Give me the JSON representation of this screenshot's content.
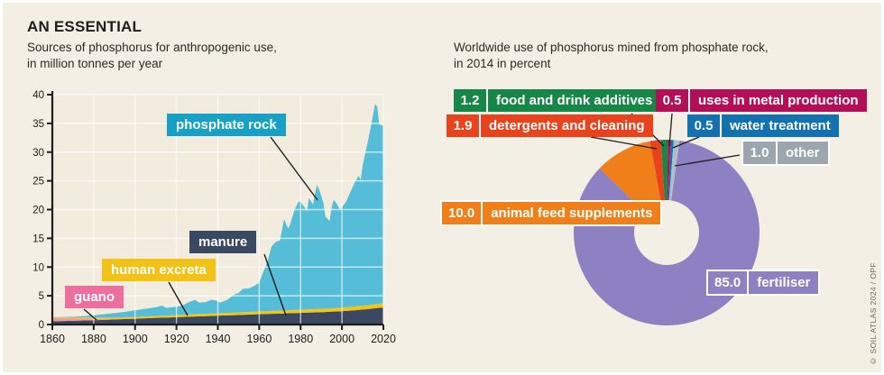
{
  "header": {
    "title": "AN ESSENTIAL",
    "subtitle_line1": "Sources of phosphorus for anthropogenic use,",
    "subtitle_line2": "in million tonnes per year"
  },
  "right_header": {
    "line1": "Worldwide use of phosphorus mined from phosphate rock,",
    "line2": "in 2014 in percent"
  },
  "credit": "© SOIL ATLAS 2024 / OPF",
  "colors": {
    "background": "#f4efe5",
    "plot_background": "#f2ecdf",
    "gridline": "#ffffff",
    "axis": "#1d1d1b",
    "text": "#1d1d1b",
    "leader_line": "#1d1d1b"
  },
  "chart_data": [
    {
      "type": "area",
      "stacked": true,
      "title": "Sources of phosphorus for anthropogenic use, in million tonnes per year",
      "xlabel": "",
      "ylabel": "million tonnes per year",
      "ylim": [
        0,
        40
      ],
      "yticks": [
        0,
        5,
        10,
        15,
        20,
        25,
        30,
        35,
        40
      ],
      "xticks": [
        1860,
        1880,
        1900,
        1920,
        1940,
        1960,
        1980,
        2000,
        2020
      ],
      "grid": true,
      "x": [
        1860,
        1865,
        1870,
        1875,
        1880,
        1885,
        1890,
        1895,
        1900,
        1905,
        1910,
        1913,
        1915,
        1920,
        1923,
        1926,
        1929,
        1931,
        1934,
        1937,
        1939,
        1941,
        1944,
        1946,
        1948,
        1950,
        1952,
        1955,
        1958,
        1960,
        1962,
        1964,
        1966,
        1968,
        1970,
        1972,
        1974,
        1975,
        1977,
        1979,
        1980,
        1982,
        1983,
        1984,
        1986,
        1987,
        1988,
        1989,
        1991,
        1992,
        1994,
        1995,
        1996,
        1998,
        1999,
        2000,
        2002,
        2004,
        2006,
        2008,
        2009,
        2010,
        2012,
        2014,
        2016,
        2017,
        2018,
        2020
      ],
      "series": [
        {
          "name": "manure",
          "color": "#3a4861",
          "label_color": "#3a4861",
          "values": [
            0.55,
            0.6,
            0.65,
            0.7,
            0.75,
            0.8,
            0.88,
            0.95,
            1.0,
            1.08,
            1.15,
            1.18,
            1.2,
            1.28,
            1.32,
            1.36,
            1.4,
            1.42,
            1.46,
            1.5,
            1.53,
            1.55,
            1.58,
            1.6,
            1.63,
            1.65,
            1.68,
            1.72,
            1.76,
            1.8,
            1.82,
            1.84,
            1.86,
            1.88,
            1.9,
            1.93,
            1.96,
            1.97,
            1.99,
            2.01,
            2.02,
            2.05,
            2.06,
            2.07,
            2.1,
            2.11,
            2.12,
            2.13,
            2.16,
            2.18,
            2.21,
            2.23,
            2.25,
            2.28,
            2.3,
            2.32,
            2.37,
            2.42,
            2.48,
            2.54,
            2.57,
            2.6,
            2.67,
            2.74,
            2.82,
            2.86,
            2.9,
            2.95
          ]
        },
        {
          "name": "guano",
          "color": "#e99baf",
          "label_color": "#ed6f9d",
          "values": [
            0.5,
            0.48,
            0.44,
            0.36,
            0.27,
            0.18,
            0.1,
            0.05,
            0.03,
            0.01,
            0,
            0,
            0,
            0,
            0,
            0,
            0,
            0,
            0,
            0,
            0,
            0,
            0,
            0,
            0,
            0,
            0,
            0,
            0,
            0,
            0,
            0,
            0,
            0,
            0,
            0,
            0,
            0,
            0,
            0,
            0,
            0,
            0,
            0,
            0,
            0,
            0,
            0,
            0,
            0,
            0,
            0,
            0,
            0,
            0,
            0,
            0,
            0,
            0,
            0,
            0,
            0,
            0,
            0,
            0,
            0,
            0,
            0
          ]
        },
        {
          "name": "human excreta",
          "color": "#f5c413",
          "label_color": "#f3c216",
          "values": [
            0.15,
            0.16,
            0.17,
            0.19,
            0.21,
            0.23,
            0.26,
            0.28,
            0.3,
            0.32,
            0.34,
            0.35,
            0.35,
            0.37,
            0.38,
            0.39,
            0.4,
            0.4,
            0.41,
            0.42,
            0.42,
            0.43,
            0.44,
            0.44,
            0.45,
            0.45,
            0.46,
            0.47,
            0.48,
            0.49,
            0.49,
            0.5,
            0.51,
            0.51,
            0.52,
            0.53,
            0.53,
            0.54,
            0.54,
            0.55,
            0.55,
            0.56,
            0.56,
            0.56,
            0.57,
            0.57,
            0.58,
            0.58,
            0.59,
            0.59,
            0.6,
            0.6,
            0.61,
            0.62,
            0.62,
            0.63,
            0.64,
            0.65,
            0.66,
            0.67,
            0.67,
            0.68,
            0.69,
            0.7,
            0.7,
            0.71,
            0.72,
            0.73
          ]
        },
        {
          "name": "phosphate rock",
          "color": "#56bdd8",
          "label_color": "#17a1c7",
          "values": [
            0.05,
            0.06,
            0.09,
            0.2,
            0.37,
            0.59,
            0.76,
            0.92,
            1.17,
            1.34,
            1.51,
            1.77,
            1.35,
            1.45,
            1.6,
            2.15,
            2.5,
            1.98,
            2.03,
            2.38,
            2.25,
            1.82,
            2.18,
            2.66,
            3.12,
            3.4,
            4.06,
            4.11,
            4.56,
            5.01,
            6.89,
            8.66,
            11.23,
            12.01,
            12.18,
            15.84,
            14.21,
            14.99,
            17.37,
            18.84,
            18.73,
            17.79,
            16.98,
            19.37,
            18.23,
            20.32,
            21.6,
            20.79,
            18.45,
            16.03,
            15.19,
            17.57,
            18.84,
            17.8,
            16.98,
            17.45,
            18.39,
            19.93,
            21.46,
            22.69,
            21.86,
            24.42,
            27.64,
            31.06,
            34.87,
            34.33,
            31.18,
            30.92
          ]
        }
      ]
    },
    {
      "type": "pie",
      "donut": true,
      "title": "Worldwide use of phosphorus mined from phosphate rock, in 2014 in percent",
      "start_angle_deg": 8,
      "segments": [
        {
          "label": "fertiliser",
          "value": 85.0,
          "display": "85.0",
          "color": "#8e81c3",
          "label_color": "#8e81c3"
        },
        {
          "label": "animal feed supplements",
          "value": 10.0,
          "display": "10.0",
          "color": "#f07f19",
          "label_color": "#f07f19"
        },
        {
          "label": "detergents and cleaning",
          "value": 1.9,
          "display": "1.9",
          "color": "#e8431c",
          "label_color": "#e8431c"
        },
        {
          "label": "food and drink additives",
          "value": 1.2,
          "display": "1.2",
          "color": "#178748",
          "label_color": "#178748"
        },
        {
          "label": "uses in metal production",
          "value": 0.5,
          "display": "0.5",
          "color": "#b30f56",
          "label_color": "#b30f56"
        },
        {
          "label": "water treatment",
          "value": 0.5,
          "display": "0.5",
          "color": "#1371b0",
          "label_color": "#1371b0"
        },
        {
          "label": "other",
          "value": 1.0,
          "display": "1.0",
          "color": "#b3bdc6",
          "label_color": "#9ba6ae"
        }
      ]
    }
  ]
}
